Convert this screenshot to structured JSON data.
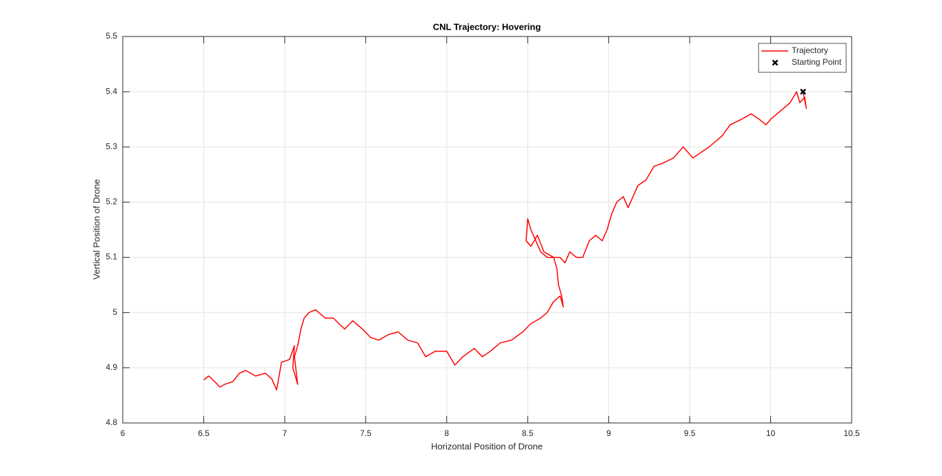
{
  "chart_data": {
    "type": "line",
    "title": "CNL Trajectory: Hovering",
    "x_label": "Horizontal Position of Drone",
    "y_label": "Vertical Position of Drone",
    "xlim": [
      6,
      10.5
    ],
    "ylim": [
      4.8,
      5.5
    ],
    "xticks": [
      6,
      6.5,
      7,
      7.5,
      8,
      8.5,
      9,
      9.5,
      10,
      10.5
    ],
    "yticks": [
      4.8,
      4.9,
      5,
      5.1,
      5.2,
      5.3,
      5.4,
      5.5
    ],
    "grid": true,
    "legend": "northeast",
    "series": [
      {
        "name": "Trajectory",
        "color": "#ff0000",
        "x": [
          10.2,
          10.22,
          10.21,
          10.18,
          10.16,
          10.12,
          10.08,
          10.04,
          10.0,
          9.97,
          9.93,
          9.88,
          9.82,
          9.75,
          9.7,
          9.66,
          9.62,
          9.57,
          9.52,
          9.46,
          9.4,
          9.33,
          9.28,
          9.23,
          9.18,
          9.15,
          9.12,
          9.09,
          9.05,
          9.02,
          8.99,
          8.96,
          8.92,
          8.88,
          8.84,
          8.8,
          8.76,
          8.73,
          8.7,
          8.66,
          8.62,
          8.58,
          8.55,
          8.52,
          8.5,
          8.49,
          8.52,
          8.56,
          8.6,
          8.66,
          8.68,
          8.69,
          8.71,
          8.72,
          8.7,
          8.66,
          8.62,
          8.58,
          8.52,
          8.47,
          8.4,
          8.33,
          8.27,
          8.22,
          8.17,
          8.1,
          8.05,
          8.0,
          7.93,
          7.87,
          7.82,
          7.76,
          7.7,
          7.64,
          7.58,
          7.53,
          7.48,
          7.42,
          7.37,
          7.3,
          7.25,
          7.19,
          7.15,
          7.12,
          7.1,
          7.08,
          7.06,
          7.08,
          7.05,
          7.06,
          7.03,
          6.98,
          6.95,
          6.92,
          6.88,
          6.82,
          6.76,
          6.72,
          6.68,
          6.63,
          6.6,
          6.55,
          6.53,
          6.5
        ],
        "values": [
          5.4,
          5.37,
          5.39,
          5.38,
          5.4,
          5.38,
          5.37,
          5.36,
          5.35,
          5.34,
          5.35,
          5.36,
          5.35,
          5.34,
          5.32,
          5.31,
          5.3,
          5.29,
          5.28,
          5.3,
          5.28,
          5.27,
          5.265,
          5.24,
          5.23,
          5.21,
          5.19,
          5.21,
          5.2,
          5.18,
          5.15,
          5.13,
          5.14,
          5.13,
          5.1,
          5.1,
          5.11,
          5.09,
          5.1,
          5.1,
          5.1,
          5.11,
          5.13,
          5.15,
          5.17,
          5.13,
          5.12,
          5.14,
          5.11,
          5.1,
          5.08,
          5.05,
          5.03,
          5.01,
          5.03,
          5.02,
          5.0,
          4.99,
          4.98,
          4.965,
          4.95,
          4.945,
          4.93,
          4.92,
          4.935,
          4.92,
          4.905,
          4.93,
          4.93,
          4.92,
          4.945,
          4.95,
          4.965,
          4.96,
          4.95,
          4.955,
          4.97,
          4.985,
          4.97,
          4.99,
          4.99,
          5.005,
          5.0,
          4.99,
          4.97,
          4.94,
          4.92,
          4.87,
          4.9,
          4.94,
          4.915,
          4.91,
          4.86,
          4.88,
          4.89,
          4.885,
          4.895,
          4.89,
          4.875,
          4.87,
          4.865,
          4.88,
          4.885,
          4.878
        ]
      },
      {
        "name": "Starting Point",
        "color": "#000000",
        "type": "scatter",
        "x": [
          10.2
        ],
        "values": [
          5.4
        ]
      }
    ]
  }
}
